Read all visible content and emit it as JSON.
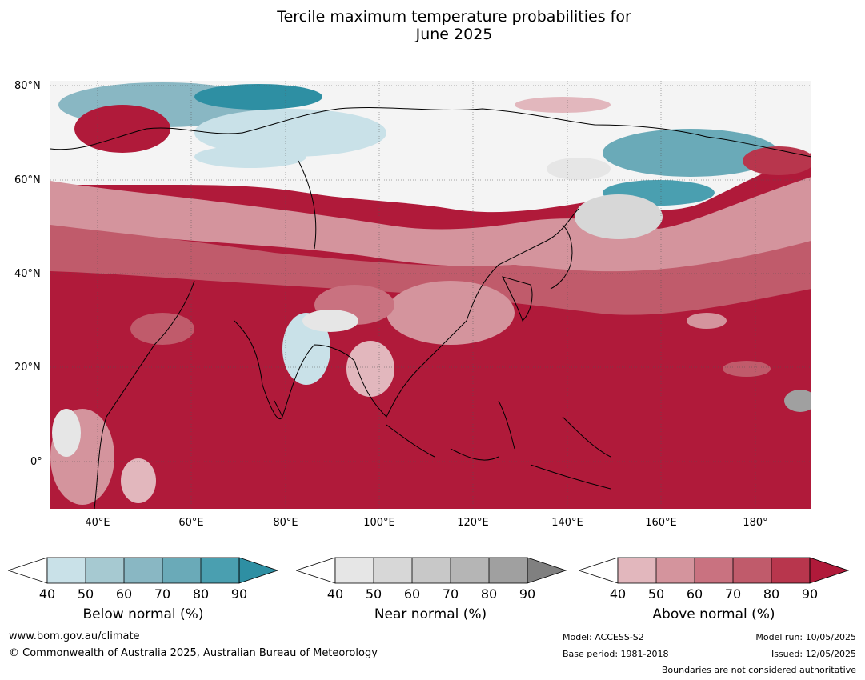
{
  "title_line1": "Tercile maximum temperature probabilities for",
  "title_line2": "June 2025",
  "lat_labels": [
    "80°N",
    "60°N",
    "40°N",
    "20°N",
    "0°"
  ],
  "lon_labels": [
    "40°E",
    "60°E",
    "80°E",
    "100°E",
    "120°E",
    "140°E",
    "160°E",
    "180°"
  ],
  "colorbars": [
    {
      "label": "Below normal (%)",
      "ticks": [
        "40",
        "50",
        "60",
        "70",
        "80",
        "90"
      ],
      "colors": [
        "#c9e1e8",
        "#a6c9d1",
        "#89b7c3",
        "#6aaab8",
        "#4a9fb0",
        "#2e8fa3"
      ]
    },
    {
      "label": "Near normal (%)",
      "ticks": [
        "40",
        "50",
        "60",
        "70",
        "80",
        "90"
      ],
      "colors": [
        "#e6e6e6",
        "#d7d7d7",
        "#c8c8c8",
        "#b5b5b5",
        "#a0a0a0",
        "#808080"
      ]
    },
    {
      "label": "Above normal (%)",
      "ticks": [
        "40",
        "50",
        "60",
        "70",
        "80",
        "90"
      ],
      "colors": [
        "#e2b7bd",
        "#d4949d",
        "#c97280",
        "#c05b6b",
        "#b8364d",
        "#b01a3a"
      ]
    }
  ],
  "footer": {
    "website": "www.bom.gov.au/climate",
    "copyright": "© Commonwealth of Australia 2025, Australian Bureau of Meteorology",
    "model": "Model: ACCESS-S2",
    "base_period": "Base period: 1981-2018",
    "model_run": "Model run: 10/05/2025",
    "issued": "Issued: 12/05/2025",
    "boundaries": "Boundaries are not considered authoritative"
  }
}
